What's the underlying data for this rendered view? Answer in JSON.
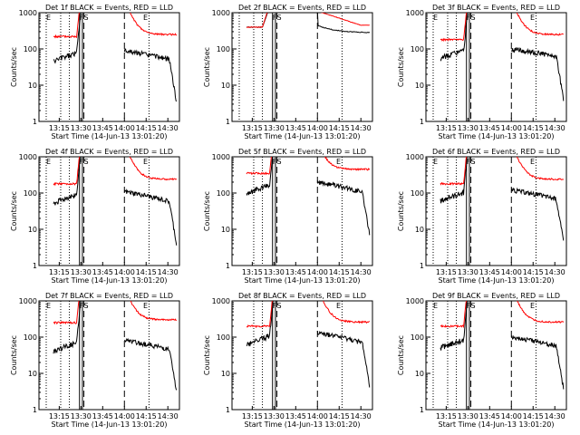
{
  "chart_data": [
    {
      "type": "line",
      "title": "Det 1f BLACK = Events, RED = LLD",
      "ylabel": "Counts/sec",
      "xlabel": "Start Time (14-Jun-13 13:01:20)",
      "yscale": "log",
      "ylim": [
        1,
        1000
      ],
      "y_ticks": [
        "1",
        "10",
        "100",
        "1000"
      ],
      "x_ticks": [
        "13:15",
        "13:30",
        "13:45",
        "14:00",
        "14:15",
        "14:30"
      ],
      "markers": [
        {
          "label": "E",
          "time": "13:06"
        },
        {
          "label": "F",
          "time": "13:29"
        },
        {
          "label": "S",
          "time": "13:32"
        },
        {
          "label": "E",
          "time": "14:13"
        }
      ],
      "black_level": [
        45,
        90
      ],
      "red_level": [
        220,
        250
      ],
      "style": 0,
      "legend": "none"
    },
    {
      "type": "line",
      "title": "Det 2f BLACK = Events, RED = LLD",
      "ylabel": "Counts/sec",
      "xlabel": "Start Time (14-Jun-13 13:01:20)",
      "yscale": "log",
      "ylim": [
        1,
        1000
      ],
      "y_ticks": [
        "1",
        "10",
        "100",
        "1000"
      ],
      "x_ticks": [
        "13:15",
        "13:30",
        "13:45",
        "14:00",
        "14:15",
        "14:30"
      ],
      "markers": [
        {
          "label": "F",
          "time": "13:29"
        },
        {
          "label": "S",
          "time": "13:32"
        }
      ],
      "black_level": [
        280,
        400
      ],
      "red_level": [
        400,
        450
      ],
      "style": 1,
      "legend": "none"
    },
    {
      "type": "line",
      "title": "Det 3f BLACK = Events, RED = LLD",
      "ylabel": "Counts/sec",
      "xlabel": "Start Time (14-Jun-13 13:01:20)",
      "yscale": "log",
      "ylim": [
        1,
        1000
      ],
      "y_ticks": [
        "1",
        "10",
        "100",
        "1000"
      ],
      "x_ticks": [
        "13:15",
        "13:30",
        "13:45",
        "14:00",
        "14:15",
        "14:30"
      ],
      "markers": [
        {
          "label": "E",
          "time": "13:06"
        },
        {
          "label": "F",
          "time": "13:29"
        },
        {
          "label": "S",
          "time": "13:32"
        },
        {
          "label": "E",
          "time": "14:13"
        }
      ],
      "black_level": [
        55,
        100
      ],
      "red_level": [
        180,
        250
      ],
      "style": 0,
      "legend": "none"
    },
    {
      "type": "line",
      "title": "Det 4f BLACK = Events, RED = LLD",
      "ylabel": "Counts/sec",
      "xlabel": "Start Time (14-Jun-13 13:01:20)",
      "yscale": "log",
      "ylim": [
        1,
        1000
      ],
      "y_ticks": [
        "1",
        "10",
        "100",
        "1000"
      ],
      "x_ticks": [
        "13:15",
        "13:30",
        "13:45",
        "14:00",
        "14:15",
        "14:30"
      ],
      "markers": [
        {
          "label": "E",
          "time": "13:06"
        },
        {
          "label": "F",
          "time": "13:29"
        },
        {
          "label": "S",
          "time": "13:32"
        },
        {
          "label": "E",
          "time": "14:13"
        }
      ],
      "black_level": [
        50,
        110
      ],
      "red_level": [
        180,
        240
      ],
      "style": 0,
      "legend": "none"
    },
    {
      "type": "line",
      "title": "Det 5f BLACK = Events, RED = LLD",
      "ylabel": "Counts/sec",
      "xlabel": "Start Time (14-Jun-13 13:01:20)",
      "yscale": "log",
      "ylim": [
        1,
        1000
      ],
      "y_ticks": [
        "1",
        "10",
        "100",
        "1000"
      ],
      "x_ticks": [
        "13:15",
        "13:30",
        "13:45",
        "14:00",
        "14:15",
        "14:30"
      ],
      "markers": [
        {
          "label": "F",
          "time": "13:29"
        },
        {
          "label": "S",
          "time": "13:32"
        },
        {
          "label": "E",
          "time": "14:13"
        }
      ],
      "black_level": [
        90,
        200
      ],
      "red_level": [
        350,
        450
      ],
      "style": 2,
      "legend": "none"
    },
    {
      "type": "line",
      "title": "Det 6f BLACK = Events, RED = LLD",
      "ylabel": "Counts/sec",
      "xlabel": "Start Time (14-Jun-13 13:01:20)",
      "yscale": "log",
      "ylim": [
        1,
        1000
      ],
      "y_ticks": [
        "1",
        "10",
        "100",
        "1000"
      ],
      "x_ticks": [
        "13:15",
        "13:30",
        "13:45",
        "14:00",
        "14:15",
        "14:30"
      ],
      "markers": [
        {
          "label": "E",
          "time": "13:06"
        },
        {
          "label": "F",
          "time": "13:29"
        },
        {
          "label": "S",
          "time": "13:32"
        },
        {
          "label": "E",
          "time": "14:13"
        }
      ],
      "black_level": [
        60,
        120
      ],
      "red_level": [
        180,
        240
      ],
      "style": 0,
      "legend": "none"
    },
    {
      "type": "line",
      "title": "Det 7f BLACK = Events, RED = LLD",
      "ylabel": "Counts/sec",
      "xlabel": "Start Time (14-Jun-13 13:01:20)",
      "yscale": "log",
      "ylim": [
        1,
        1000
      ],
      "y_ticks": [
        "1",
        "10",
        "100",
        "1000"
      ],
      "x_ticks": [
        "13:15",
        "13:30",
        "13:45",
        "14:00",
        "14:15",
        "14:30"
      ],
      "markers": [
        {
          "label": "E",
          "time": "13:06"
        },
        {
          "label": "F",
          "time": "13:29"
        },
        {
          "label": "S",
          "time": "13:32"
        },
        {
          "label": "E",
          "time": "14:13"
        }
      ],
      "black_level": [
        40,
        80
      ],
      "red_level": [
        250,
        300
      ],
      "style": 0,
      "legend": "none"
    },
    {
      "type": "line",
      "title": "Det 8f BLACK = Events, RED = LLD",
      "ylabel": "Counts/sec",
      "xlabel": "Start Time (14-Jun-13 13:01:20)",
      "yscale": "log",
      "ylim": [
        1,
        1000
      ],
      "y_ticks": [
        "1",
        "10",
        "100",
        "1000"
      ],
      "x_ticks": [
        "13:15",
        "13:30",
        "13:45",
        "14:00",
        "14:15",
        "14:30"
      ],
      "markers": [
        {
          "label": "F",
          "time": "13:29"
        },
        {
          "label": "S",
          "time": "13:32"
        },
        {
          "label": "E",
          "time": "14:13"
        }
      ],
      "black_level": [
        60,
        130
      ],
      "red_level": [
        200,
        260
      ],
      "style": 2,
      "legend": "none"
    },
    {
      "type": "line",
      "title": "Det 9f BLACK = Events, RED = LLD",
      "ylabel": "Counts/sec",
      "xlabel": "Start Time (14-Jun-13 13:01:20)",
      "yscale": "log",
      "ylim": [
        1,
        1000
      ],
      "y_ticks": [
        "1",
        "10",
        "100",
        "1000"
      ],
      "x_ticks": [
        "13:15",
        "13:30",
        "13:45",
        "14:00",
        "14:15",
        "14:30"
      ],
      "markers": [
        {
          "label": "E",
          "time": "13:06"
        },
        {
          "label": "F",
          "time": "13:29"
        },
        {
          "label": "S",
          "time": "13:32"
        },
        {
          "label": "E",
          "time": "14:13"
        }
      ],
      "black_level": [
        50,
        100
      ],
      "red_level": [
        200,
        260
      ],
      "style": 0,
      "legend": "none"
    }
  ],
  "colors": {
    "events": "#000000",
    "lld": "#ff0000",
    "axes": "#000000",
    "background": "#ffffff"
  }
}
